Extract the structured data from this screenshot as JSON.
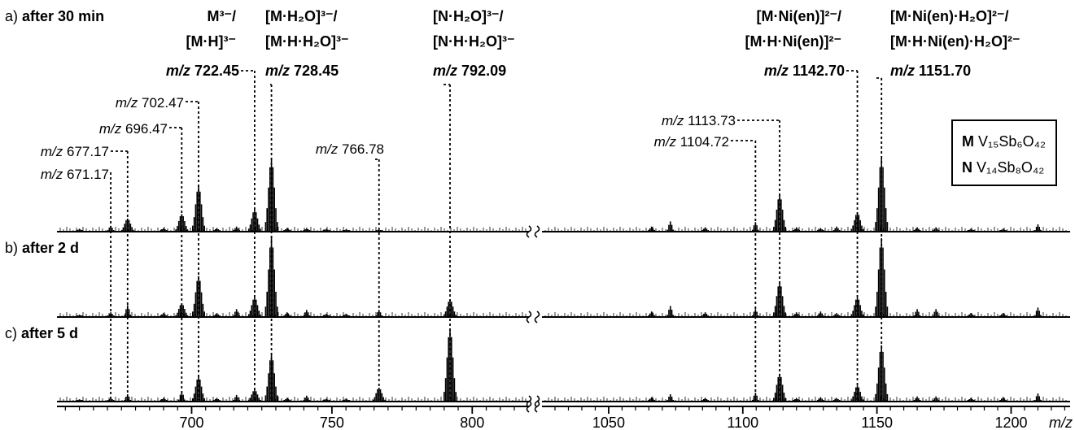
{
  "chart_data": {
    "type": "line",
    "xlabel": "m/z",
    "x_break": [
      810,
      1030
    ],
    "xlim_left": [
      652,
      815
    ],
    "xlim_right": [
      1030,
      1222
    ],
    "x_ticks": [
      700,
      750,
      800,
      1050,
      1100,
      1150,
      1200
    ],
    "panels": [
      {
        "label_prefix": "a)",
        "label_bold": "after 30 min",
        "peaks": [
          {
            "x": 660,
            "y": 0.04
          },
          {
            "x": 671.17,
            "y": 0.08
          },
          {
            "x": 677.17,
            "y": 0.18
          },
          {
            "x": 690,
            "y": 0.05
          },
          {
            "x": 696.47,
            "y": 0.24
          },
          {
            "x": 702.47,
            "y": 0.62
          },
          {
            "x": 709,
            "y": 0.05
          },
          {
            "x": 716,
            "y": 0.07
          },
          {
            "x": 722.45,
            "y": 0.3
          },
          {
            "x": 728.45,
            "y": 1.0
          },
          {
            "x": 734,
            "y": 0.05
          },
          {
            "x": 741,
            "y": 0.05
          },
          {
            "x": 748,
            "y": 0.04
          },
          {
            "x": 755,
            "y": 0.03
          },
          {
            "x": 766.78,
            "y": 0.03
          },
          {
            "x": 1066,
            "y": 0.07
          },
          {
            "x": 1073,
            "y": 0.14
          },
          {
            "x": 1086,
            "y": 0.06
          },
          {
            "x": 1104.72,
            "y": 0.13
          },
          {
            "x": 1113.73,
            "y": 0.5
          },
          {
            "x": 1120,
            "y": 0.06
          },
          {
            "x": 1129,
            "y": 0.05
          },
          {
            "x": 1135,
            "y": 0.07
          },
          {
            "x": 1142.7,
            "y": 0.26
          },
          {
            "x": 1151.7,
            "y": 1.0
          },
          {
            "x": 1165,
            "y": 0.06
          },
          {
            "x": 1172,
            "y": 0.06
          },
          {
            "x": 1185,
            "y": 0.04
          },
          {
            "x": 1197,
            "y": 0.04
          },
          {
            "x": 1210,
            "y": 0.1
          }
        ]
      },
      {
        "label_prefix": "b)",
        "label_bold": "after 2 d",
        "peaks": [
          {
            "x": 660,
            "y": 0.03
          },
          {
            "x": 671.17,
            "y": 0.06
          },
          {
            "x": 677.17,
            "y": 0.15
          },
          {
            "x": 690,
            "y": 0.05
          },
          {
            "x": 696.47,
            "y": 0.17
          },
          {
            "x": 702.47,
            "y": 0.52
          },
          {
            "x": 709,
            "y": 0.05
          },
          {
            "x": 716,
            "y": 0.1
          },
          {
            "x": 722.45,
            "y": 0.25
          },
          {
            "x": 728.45,
            "y": 1.0
          },
          {
            "x": 734,
            "y": 0.06
          },
          {
            "x": 741,
            "y": 0.09
          },
          {
            "x": 748,
            "y": 0.04
          },
          {
            "x": 755,
            "y": 0.04
          },
          {
            "x": 766.78,
            "y": 0.09
          },
          {
            "x": 792.09,
            "y": 0.22
          },
          {
            "x": 1066,
            "y": 0.07
          },
          {
            "x": 1073,
            "y": 0.14
          },
          {
            "x": 1086,
            "y": 0.06
          },
          {
            "x": 1104.72,
            "y": 0.1
          },
          {
            "x": 1113.73,
            "y": 0.44
          },
          {
            "x": 1120,
            "y": 0.06
          },
          {
            "x": 1129,
            "y": 0.07
          },
          {
            "x": 1135,
            "y": 0.05
          },
          {
            "x": 1142.7,
            "y": 0.25
          },
          {
            "x": 1151.7,
            "y": 1.0
          },
          {
            "x": 1165,
            "y": 0.1
          },
          {
            "x": 1172,
            "y": 0.1
          },
          {
            "x": 1185,
            "y": 0.05
          },
          {
            "x": 1197,
            "y": 0.05
          },
          {
            "x": 1210,
            "y": 0.12
          }
        ]
      },
      {
        "label_prefix": "c)",
        "label_bold": "after 5 d",
        "peaks": [
          {
            "x": 660,
            "y": 0.03
          },
          {
            "x": 671.17,
            "y": 0.05
          },
          {
            "x": 677.17,
            "y": 0.1
          },
          {
            "x": 690,
            "y": 0.05
          },
          {
            "x": 696.47,
            "y": 0.14
          },
          {
            "x": 702.47,
            "y": 0.34
          },
          {
            "x": 709,
            "y": 0.05
          },
          {
            "x": 716,
            "y": 0.09
          },
          {
            "x": 722.45,
            "y": 0.16
          },
          {
            "x": 728.45,
            "y": 0.64
          },
          {
            "x": 734,
            "y": 0.05
          },
          {
            "x": 741,
            "y": 0.08
          },
          {
            "x": 748,
            "y": 0.04
          },
          {
            "x": 755,
            "y": 0.04
          },
          {
            "x": 766.78,
            "y": 0.19
          },
          {
            "x": 792.09,
            "y": 1.0
          },
          {
            "x": 1066,
            "y": 0.06
          },
          {
            "x": 1073,
            "y": 0.1
          },
          {
            "x": 1086,
            "y": 0.05
          },
          {
            "x": 1104.72,
            "y": 0.12
          },
          {
            "x": 1113.73,
            "y": 0.38
          },
          {
            "x": 1120,
            "y": 0.05
          },
          {
            "x": 1129,
            "y": 0.06
          },
          {
            "x": 1135,
            "y": 0.05
          },
          {
            "x": 1142.7,
            "y": 0.22
          },
          {
            "x": 1151.7,
            "y": 0.77
          },
          {
            "x": 1165,
            "y": 0.07
          },
          {
            "x": 1172,
            "y": 0.07
          },
          {
            "x": 1185,
            "y": 0.05
          },
          {
            "x": 1197,
            "y": 0.06
          },
          {
            "x": 1210,
            "y": 0.11
          }
        ]
      }
    ],
    "annotations": [
      {
        "line1": "M³⁻/",
        "line2": "[M·H]³⁻",
        "mz_prefix": "m/z",
        "mz": "722.45",
        "x": 722.45
      },
      {
        "line1": "[M·H₂O]³⁻/",
        "line2": "[M·H·H₂O]³⁻",
        "mz_prefix": "m/z",
        "mz": "728.45",
        "x": 728.45
      },
      {
        "line1": "[N·H₂O]³⁻/",
        "line2": "[N·H·H₂O]³⁻",
        "mz_prefix": "m/z",
        "mz": "792.09",
        "x": 792.09
      },
      {
        "line1": "[M·Ni(en)]²⁻/",
        "line2": "[M·H·Ni(en)]²⁻",
        "mz_prefix": "m/z",
        "mz": "1142.70",
        "x": 1142.7
      },
      {
        "line1": "[M·Ni(en)·H₂O]²⁻/",
        "line2": "[M·H·Ni(en)·H₂O]²⁻",
        "mz_prefix": "m/z",
        "mz": "1151.70",
        "x": 1151.7
      }
    ],
    "small_labels": [
      {
        "prefix": "m/z",
        "value": "702.47",
        "x": 702.47
      },
      {
        "prefix": "m/z",
        "value": "696.47",
        "x": 696.47
      },
      {
        "prefix": "m/z",
        "value": "677.17",
        "x": 677.17
      },
      {
        "prefix": "m/z",
        "value": "671.17",
        "x": 671.17
      },
      {
        "prefix": "m/z",
        "value": "766.78",
        "x": 766.78
      },
      {
        "prefix": "m/z",
        "value": "1113.73",
        "x": 1113.73
      },
      {
        "prefix": "m/z",
        "value": "1104.72",
        "x": 1104.72
      }
    ],
    "legend": [
      {
        "symbol": "M",
        "formula": "V₁₅Sb₆O₄₂"
      },
      {
        "symbol": "N",
        "formula": "V₁₄Sb₈O₄₂"
      }
    ]
  }
}
